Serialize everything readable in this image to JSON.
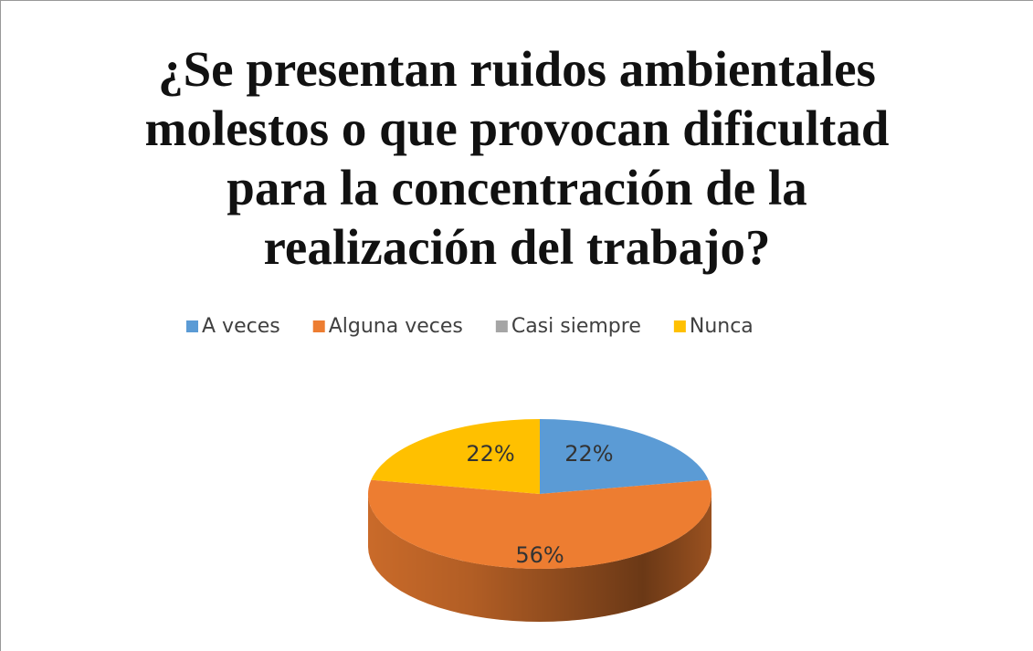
{
  "chart_data": {
    "type": "pie",
    "title": "¿Se presentan ruidos ambientales molestos o que provocan dificultad para la concentración de la realización del trabajo?",
    "categories": [
      "A veces",
      "Alguna veces",
      "Casi siempre",
      "Nunca"
    ],
    "values": [
      22,
      56,
      0,
      22
    ],
    "value_labels": [
      "22%",
      "56%",
      null,
      "22%"
    ],
    "colors": [
      "#5b9bd5",
      "#ed7d31",
      "#a5a5a5",
      "#ffc000"
    ],
    "legend": "top"
  }
}
